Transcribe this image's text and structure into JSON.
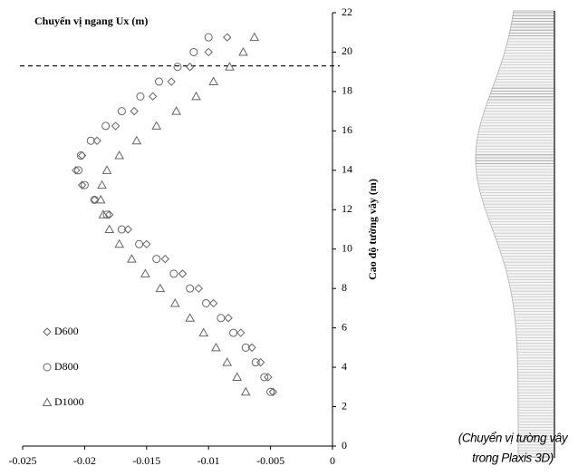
{
  "chart_data": {
    "type": "scatter",
    "title": "Chuyển vị ngang Ux (m)",
    "y_label": "Cao độ tường vây (m)",
    "xlim": [
      -0.025,
      0
    ],
    "xticks": [
      -0.025,
      -0.02,
      -0.015,
      -0.01,
      -0.005,
      0
    ],
    "ylim": [
      0,
      22
    ],
    "yticks": [
      0,
      2,
      4,
      6,
      8,
      10,
      12,
      14,
      16,
      18,
      20,
      22
    ],
    "y_axis_side": "right",
    "hlines": [
      19.3
    ],
    "legend": "lower left",
    "series": [
      {
        "name": "D600",
        "color": "#666666",
        "marker": "diamond",
        "x": [
          -0.0048,
          -0.0052,
          -0.0058,
          -0.0065,
          -0.0074,
          -0.0084,
          -0.0096,
          -0.0108,
          -0.0121,
          -0.0135,
          -0.015,
          -0.0165,
          -0.018,
          -0.0192,
          -0.0202,
          -0.0207,
          -0.0202,
          -0.019,
          -0.0175,
          -0.016,
          -0.0145,
          -0.013,
          -0.0115,
          -0.01,
          -0.0085
        ],
        "values": [
          2.75,
          3.5,
          4.25,
          5,
          5.75,
          6.5,
          7.25,
          8,
          8.75,
          9.5,
          10.25,
          11,
          11.75,
          12.5,
          13.25,
          14,
          14.75,
          15.5,
          16.25,
          17,
          17.75,
          18.5,
          19.25,
          20,
          20.75
        ]
      },
      {
        "name": "D800",
        "color": "#666666",
        "marker": "circle",
        "x": [
          -0.005,
          -0.0055,
          -0.0062,
          -0.007,
          -0.008,
          -0.009,
          -0.0102,
          -0.0115,
          -0.0128,
          -0.0142,
          -0.0156,
          -0.017,
          -0.0182,
          -0.0192,
          -0.02,
          -0.0205,
          -0.0203,
          -0.0195,
          -0.0183,
          -0.017,
          -0.0155,
          -0.014,
          -0.0125,
          -0.0112,
          -0.01
        ],
        "values": [
          2.75,
          3.5,
          4.25,
          5,
          5.75,
          6.5,
          7.25,
          8,
          8.75,
          9.5,
          10.25,
          11,
          11.75,
          12.5,
          13.25,
          14,
          14.75,
          15.5,
          16.25,
          17,
          17.75,
          18.5,
          19.25,
          20,
          20.75
        ]
      },
      {
        "name": "D1000",
        "color": "#666666",
        "marker": "triangle",
        "x": [
          -0.007,
          -0.0077,
          -0.0085,
          -0.0094,
          -0.0104,
          -0.0115,
          -0.0127,
          -0.0139,
          -0.0151,
          -0.0162,
          -0.0172,
          -0.018,
          -0.0185,
          -0.0187,
          -0.0186,
          -0.0182,
          -0.0172,
          -0.0158,
          -0.0142,
          -0.0126,
          -0.011,
          -0.0096,
          -0.0083,
          -0.0072,
          -0.0063
        ],
        "values": [
          2.75,
          3.5,
          4.25,
          5,
          5.75,
          6.5,
          7.25,
          8,
          8.75,
          9.5,
          10.25,
          11,
          11.75,
          12.5,
          13.25,
          14,
          14.75,
          15.5,
          16.25,
          17,
          17.75,
          18.5,
          19.25,
          20,
          20.75
        ]
      }
    ]
  },
  "caption": [
    "(Chuyển vị tường vây",
    "trong Plaxis 3D)"
  ]
}
